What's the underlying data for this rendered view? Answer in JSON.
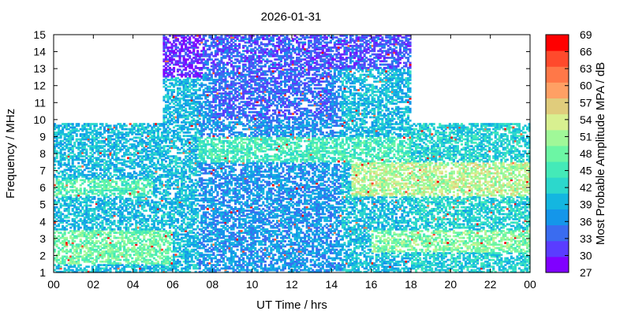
{
  "chart_data": {
    "type": "heatmap",
    "title": "2026-01-31",
    "xlabel": "UT Time / hrs",
    "ylabel": "Frequency / MHz",
    "colorbar_label": "Most Probable Amplitude MPA / dB",
    "xlim": [
      0,
      24
    ],
    "ylim": [
      1,
      15
    ],
    "x_ticks": [
      "00",
      "02",
      "04",
      "06",
      "08",
      "10",
      "12",
      "14",
      "16",
      "18",
      "20",
      "22",
      "00"
    ],
    "y_ticks": [
      "1",
      "2",
      "3",
      "4",
      "5",
      "6",
      "7",
      "8",
      "9",
      "10",
      "11",
      "12",
      "13",
      "14",
      "15"
    ],
    "color_ticks": [
      "27",
      "30",
      "33",
      "36",
      "39",
      "42",
      "45",
      "48",
      "51",
      "54",
      "57",
      "60",
      "63",
      "66",
      "69"
    ],
    "color_range": [
      27,
      69
    ],
    "colors": [
      "#8000ff",
      "#5a3cff",
      "#3a6cf0",
      "#1496ea",
      "#14b6e0",
      "#2cd8cc",
      "#44eab8",
      "#6cf6a4",
      "#a0f898",
      "#d8f090",
      "#e0cc7c",
      "#ffa064",
      "#ff7848",
      "#ff4a2c",
      "#ff0000"
    ],
    "grid": false,
    "legend": "right colorbar",
    "regions": [
      {
        "x": [
          0,
          5.5
        ],
        "y": [
          1,
          9.8
        ],
        "mpa": 40
      },
      {
        "x": [
          5.5,
          7.3
        ],
        "y": [
          1,
          15
        ],
        "mpa": 40
      },
      {
        "x": [
          7.3,
          14.5
        ],
        "y": [
          1,
          15
        ],
        "mpa": 37
      },
      {
        "x": [
          14.5,
          18
        ],
        "y": [
          1,
          15
        ],
        "mpa": 40
      },
      {
        "x": [
          18,
          24
        ],
        "y": [
          1,
          9.8
        ],
        "mpa": 42
      }
    ],
    "bands": [
      {
        "x": [
          0,
          6
        ],
        "y": [
          1.5,
          3.5
        ],
        "mpa": 48
      },
      {
        "x": [
          0,
          5
        ],
        "y": [
          5.5,
          6.5
        ],
        "mpa": 46
      },
      {
        "x": [
          5.5,
          7.5
        ],
        "y": [
          12.5,
          15
        ],
        "mpa": 30
      },
      {
        "x": [
          7.5,
          18
        ],
        "y": [
          13,
          15
        ],
        "mpa": 33
      },
      {
        "x": [
          7.3,
          18
        ],
        "y": [
          7.5,
          9
        ],
        "mpa": 45
      },
      {
        "x": [
          15,
          24
        ],
        "y": [
          5.5,
          7.5
        ],
        "mpa": 52
      },
      {
        "x": [
          16,
          24
        ],
        "y": [
          2.2,
          3.5
        ],
        "mpa": 49
      },
      {
        "x": [
          8,
          14
        ],
        "y": [
          10,
          13
        ],
        "mpa": 34
      }
    ]
  }
}
